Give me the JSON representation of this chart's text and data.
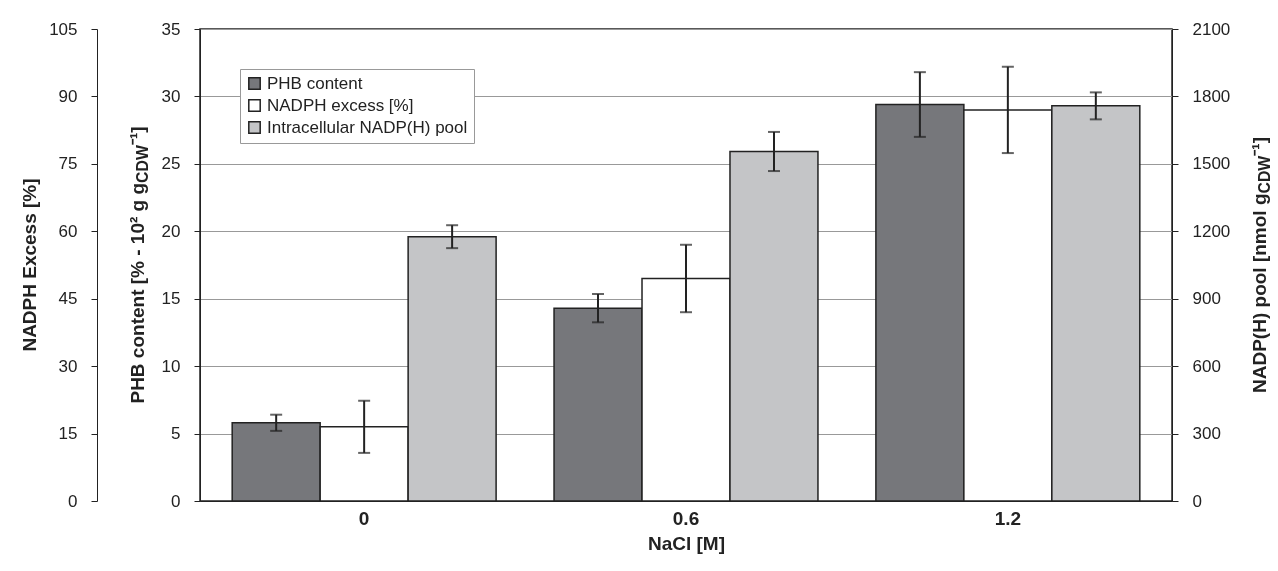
{
  "chart_data": {
    "type": "bar",
    "categories": [
      "0",
      "0.6",
      "1.2"
    ],
    "xlabel": "NaCl [M]",
    "ylabel": "PHB content [% - 10² g g$_{CDW}$⁻¹]",
    "y2label": "NADP(H) pool [nmol g$_{CDW}$⁻¹]",
    "y3label": "NADPH Excess [%]",
    "ylim": [
      0,
      35
    ],
    "yticks": [
      0,
      5,
      10,
      15,
      20,
      25,
      30,
      35
    ],
    "y2lim": [
      0,
      2100
    ],
    "y2ticks": [
      0,
      300,
      600,
      900,
      1200,
      1500,
      1800,
      2100
    ],
    "y3lim": [
      0,
      105
    ],
    "y3ticks": [
      0,
      15,
      30,
      45,
      60,
      75,
      90,
      105
    ],
    "grid": "y",
    "legend": "top left",
    "series": [
      {
        "name": "PHB content",
        "color": "#76777b",
        "values": [
          5.8,
          14.3,
          29.4
        ],
        "errors": [
          0.6,
          1.05,
          2.4
        ],
        "axis": "y"
      },
      {
        "name": "NADPH excess [%]",
        "color": "#ffffff",
        "values": [
          16.5,
          49.5,
          87
        ],
        "errors": [
          5.8,
          7.5,
          9.6
        ],
        "axis": "y3"
      },
      {
        "name": "Intracellular NADP(H) pool",
        "color": "#c4c5c7",
        "values": [
          1176,
          1555,
          1758
        ],
        "errors": [
          51,
          87,
          60
        ],
        "axis": "y2"
      }
    ]
  }
}
